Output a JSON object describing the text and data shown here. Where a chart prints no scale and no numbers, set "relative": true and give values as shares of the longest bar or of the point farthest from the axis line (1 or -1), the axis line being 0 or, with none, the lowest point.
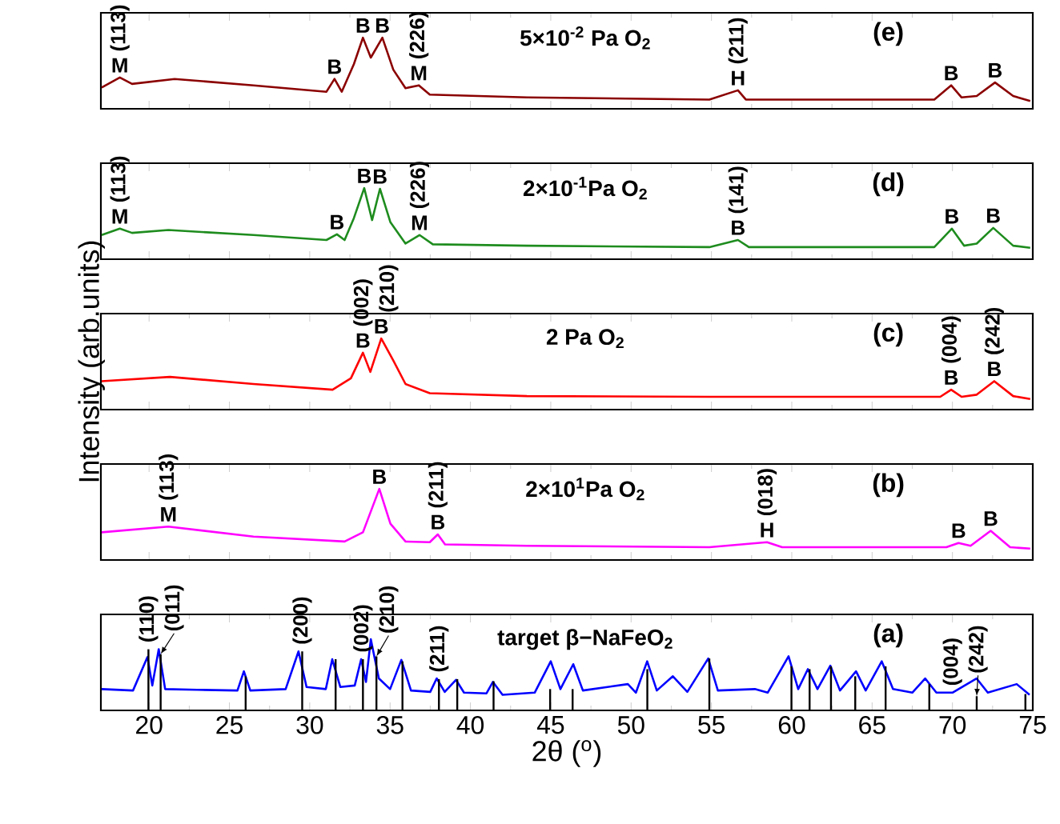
{
  "chart_data": [
    {
      "type": "line",
      "title": "(e)",
      "subtitle": "5×10$^{-2}$ Pa O$_{2}$",
      "relative": true,
      "xlim": [
        17,
        75
      ],
      "xticks": [
        20,
        25,
        30,
        35,
        40,
        45,
        50,
        55,
        60,
        65,
        70,
        75
      ],
      "tick_labels": false,
      "x": [
        17.05,
        18.18,
        18.94,
        21.59,
        26.5,
        31.04,
        31.54,
        31.99,
        32.75,
        33.31,
        33.8,
        34.52,
        35.2,
        35.96,
        36.79,
        37.47,
        43.52,
        54.87,
        56.65,
        57.14,
        68.87,
        69.92,
        70.57,
        71.51,
        72.65,
        73.78,
        74.84
      ],
      "series": [
        {
          "color": "#8b0000",
          "values": [
            0.3,
            0.44,
            0.35,
            0.42,
            0.33,
            0.24,
            0.42,
            0.24,
            0.63,
            1,
            0.72,
            1,
            0.55,
            0.29,
            0.33,
            0.2,
            0.16,
            0.13,
            0.26,
            0.13,
            0.13,
            0.33,
            0.16,
            0.18,
            0.37,
            0.18,
            0.11
          ]
        }
      ],
      "annotations": [
        {
          "text": "M",
          "x": 18.18,
          "y": 0.44
        },
        {
          "text": "(113)",
          "x": 18.18,
          "y": 0.44
        },
        {
          "text": "B",
          "x": 31.54,
          "y": 0.42
        },
        {
          "text": "B",
          "x": 33.31,
          "y": 1
        },
        {
          "text": "B",
          "x": 34.52,
          "y": 1
        },
        {
          "text": "M",
          "x": 36.79,
          "y": 0.33
        },
        {
          "text": "(226)",
          "x": 36.79,
          "y": 0.33
        },
        {
          "text": "H",
          "x": 56.65,
          "y": 0.26
        },
        {
          "text": "(211)",
          "x": 56.65,
          "y": 0.26
        },
        {
          "text": "B",
          "x": 69.92,
          "y": 0.33
        },
        {
          "text": "B",
          "x": 72.65,
          "y": 0.37
        }
      ]
    },
    {
      "type": "line",
      "title": "(d)",
      "subtitle": "2×10$^{-1}$Pa O$_{2}$",
      "relative": true,
      "xlim": [
        17,
        75
      ],
      "xticks": [
        20,
        25,
        30,
        35,
        40,
        45,
        50,
        55,
        60,
        65,
        70,
        75
      ],
      "tick_labels": false,
      "x": [
        17.05,
        18.18,
        18.94,
        21.2,
        26.5,
        31.04,
        31.69,
        32.17,
        32.75,
        33.39,
        33.88,
        34.37,
        35.02,
        35.96,
        36.83,
        37.66,
        43.52,
        54.87,
        56.65,
        57.33,
        68.87,
        69.96,
        70.72,
        71.51,
        72.54,
        73.78,
        74.84
      ],
      "series": [
        {
          "color": "#1e8c1e",
          "values": [
            0.34,
            0.43,
            0.37,
            0.41,
            0.34,
            0.27,
            0.35,
            0.27,
            0.58,
            1,
            0.55,
            0.99,
            0.52,
            0.22,
            0.34,
            0.21,
            0.19,
            0.17,
            0.27,
            0.17,
            0.17,
            0.43,
            0.19,
            0.22,
            0.44,
            0.19,
            0.16
          ]
        }
      ],
      "annotations": [
        {
          "text": "M",
          "x": 18.18,
          "y": 0.43
        },
        {
          "text": "(113)",
          "x": 18.18,
          "y": 0.43
        },
        {
          "text": "B",
          "x": 31.69,
          "y": 0.35
        },
        {
          "text": "B",
          "x": 33.39,
          "y": 1
        },
        {
          "text": "B",
          "x": 34.37,
          "y": 0.99
        },
        {
          "text": "M",
          "x": 36.83,
          "y": 0.34
        },
        {
          "text": "(226)",
          "x": 36.83,
          "y": 0.34
        },
        {
          "text": "B",
          "x": 56.65,
          "y": 0.27
        },
        {
          "text": "(141)",
          "x": 56.65,
          "y": 0.27
        },
        {
          "text": "B",
          "x": 69.96,
          "y": 0.43
        },
        {
          "text": "B",
          "x": 72.54,
          "y": 0.44
        }
      ]
    },
    {
      "type": "line",
      "title": "(c)",
      "subtitle": "2  Pa O$_{2}$",
      "ylabel": "Intensity (arb.units)",
      "relative": true,
      "xlim": [
        17,
        75
      ],
      "xticks": [
        20,
        25,
        30,
        35,
        40,
        45,
        50,
        55,
        60,
        65,
        70,
        75
      ],
      "tick_labels": false,
      "x": [
        17.05,
        21.3,
        26.5,
        31.42,
        32.56,
        33.31,
        33.77,
        34.45,
        35.2,
        35.96,
        37.47,
        43.52,
        54.87,
        69.24,
        69.92,
        70.57,
        71.51,
        72.6,
        73.78,
        74.84
      ],
      "series": [
        {
          "color": "#ff0000",
          "values": [
            0.4,
            0.46,
            0.36,
            0.28,
            0.44,
            0.8,
            0.53,
            1,
            0.69,
            0.36,
            0.23,
            0.19,
            0.18,
            0.18,
            0.28,
            0.18,
            0.21,
            0.4,
            0.19,
            0.15
          ]
        }
      ],
      "annotations": [
        {
          "text": "B",
          "x": 33.31,
          "y": 0.8
        },
        {
          "text": "(002)",
          "x": 33.31,
          "y": 0.8
        },
        {
          "text": "B",
          "x": 34.45,
          "y": 1
        },
        {
          "text": "(210)",
          "x": 34.45,
          "y": 1
        },
        {
          "text": "B",
          "x": 69.92,
          "y": 0.28
        },
        {
          "text": "(004)",
          "x": 69.92,
          "y": 0.28
        },
        {
          "text": "B",
          "x": 72.6,
          "y": 0.4
        },
        {
          "text": "(242)",
          "x": 72.6,
          "y": 0.4
        }
      ]
    },
    {
      "type": "line",
      "title": "(b)",
      "subtitle": "2×10$^{1}$Pa O$_{2}$",
      "relative": true,
      "xlim": [
        17,
        75
      ],
      "xticks": [
        20,
        25,
        30,
        35,
        40,
        45,
        50,
        55,
        60,
        65,
        70,
        75
      ],
      "tick_labels": false,
      "x": [
        17.05,
        21.2,
        26.5,
        32.17,
        33.31,
        34.33,
        35.02,
        35.96,
        37.47,
        37.97,
        38.42,
        43.52,
        54.87,
        58.46,
        59.4,
        69.62,
        70.38,
        71.13,
        72.38,
        73.59,
        74.84
      ],
      "series": [
        {
          "color": "#ff00ff",
          "values": [
            0.39,
            0.47,
            0.33,
            0.26,
            0.39,
            1,
            0.51,
            0.26,
            0.25,
            0.36,
            0.22,
            0.2,
            0.18,
            0.25,
            0.18,
            0.18,
            0.24,
            0.2,
            0.41,
            0.18,
            0.16
          ]
        }
      ],
      "annotations": [
        {
          "text": "M",
          "x": 21.2,
          "y": 0.47
        },
        {
          "text": "(113)",
          "x": 21.2,
          "y": 0.47
        },
        {
          "text": "B",
          "x": 34.33,
          "y": 1
        },
        {
          "text": "B",
          "x": 37.97,
          "y": 0.36
        },
        {
          "text": "(211)",
          "x": 37.97,
          "y": 0.36
        },
        {
          "text": "H",
          "x": 58.46,
          "y": 0.25
        },
        {
          "text": "(018)",
          "x": 58.46,
          "y": 0.25
        },
        {
          "text": "B",
          "x": 70.38,
          "y": 0.24
        },
        {
          "text": "B",
          "x": 72.38,
          "y": 0.41
        }
      ]
    },
    {
      "type": "line",
      "title": "(a)",
      "subtitle": "target β−NaFeO$_{2}$",
      "xlabel": "2θ ($^{o}$)",
      "relative": true,
      "xlim": [
        17,
        75
      ],
      "xticks": [
        20,
        25,
        30,
        35,
        40,
        45,
        50,
        55,
        60,
        65,
        70,
        75
      ],
      "tick_labels": "x",
      "series": [
        {
          "color": "#0000ff",
          "x": [
            17.05,
            19.0,
            19.9,
            20.2,
            20.6,
            21.0,
            23.0,
            25.5,
            25.9,
            26.3,
            28.5,
            29.3,
            29.8,
            31.0,
            31.4,
            31.9,
            32.8,
            33.2,
            33.5,
            33.8,
            34.3,
            35.0,
            35.7,
            36.3,
            37.5,
            37.9,
            38.4,
            39.1,
            39.6,
            41.0,
            41.4,
            42.0,
            44.0,
            45.0,
            45.6,
            46.4,
            47.0,
            49.8,
            50.3,
            51.0,
            51.6,
            52.6,
            53.5,
            54.8,
            55.4,
            57.7,
            58.5,
            59.8,
            60.4,
            61.0,
            61.6,
            62.4,
            63.0,
            64.0,
            64.6,
            65.6,
            66.3,
            67.5,
            68.3,
            69.0,
            70.0,
            71.5,
            72.2,
            74.0,
            74.8
          ],
          "values": [
            0.3,
            0.28,
            0.75,
            0.35,
            0.86,
            0.3,
            0.29,
            0.28,
            0.55,
            0.28,
            0.3,
            0.83,
            0.33,
            0.3,
            0.72,
            0.33,
            0.35,
            0.72,
            0.4,
            1.0,
            0.45,
            0.3,
            0.71,
            0.28,
            0.26,
            0.45,
            0.26,
            0.43,
            0.25,
            0.24,
            0.4,
            0.22,
            0.25,
            0.69,
            0.3,
            0.65,
            0.28,
            0.37,
            0.25,
            0.69,
            0.28,
            0.48,
            0.26,
            0.73,
            0.28,
            0.3,
            0.25,
            0.76,
            0.3,
            0.58,
            0.3,
            0.63,
            0.28,
            0.55,
            0.28,
            0.69,
            0.3,
            0.25,
            0.45,
            0.25,
            0.25,
            0.45,
            0.25,
            0.37,
            0.22
          ]
        },
        {
          "type": "bar",
          "color": "#000000",
          "x": [
            19.96,
            20.72,
            26.01,
            29.53,
            31.61,
            33.31,
            34.15,
            35.77,
            38.04,
            39.18,
            41.44,
            44.96,
            46.36,
            51.01,
            54.87,
            59.98,
            61.11,
            62.44,
            63.95,
            65.84,
            68.56,
            71.51,
            74.54
          ],
          "values": [
            0.86,
            0.79,
            0.48,
            0.83,
            0.72,
            0.72,
            0.76,
            0.69,
            0.44,
            0.44,
            0.41,
            0.3,
            0.3,
            0.58,
            0.73,
            0.62,
            0.58,
            0.62,
            0.48,
            0.62,
            0.37,
            0.2,
            0.23
          ]
        }
      ],
      "annotations": [
        {
          "text": "(110)",
          "x": 19.96,
          "y": 0.86
        },
        {
          "text": "(011)",
          "x": 20.72,
          "y": 0.79
        },
        {
          "text": "(200)",
          "x": 29.53,
          "y": 0.83
        },
        {
          "text": "(002)",
          "x": 33.31,
          "y": 0.72
        },
        {
          "text": "(210)",
          "x": 34.15,
          "y": 0.76
        },
        {
          "text": "(211)",
          "x": 38.04,
          "y": 0.44
        },
        {
          "text": "(004)",
          "x": 70.0,
          "y": 0.25
        },
        {
          "text": "(242)",
          "x": 71.51,
          "y": 0.2
        }
      ]
    }
  ]
}
